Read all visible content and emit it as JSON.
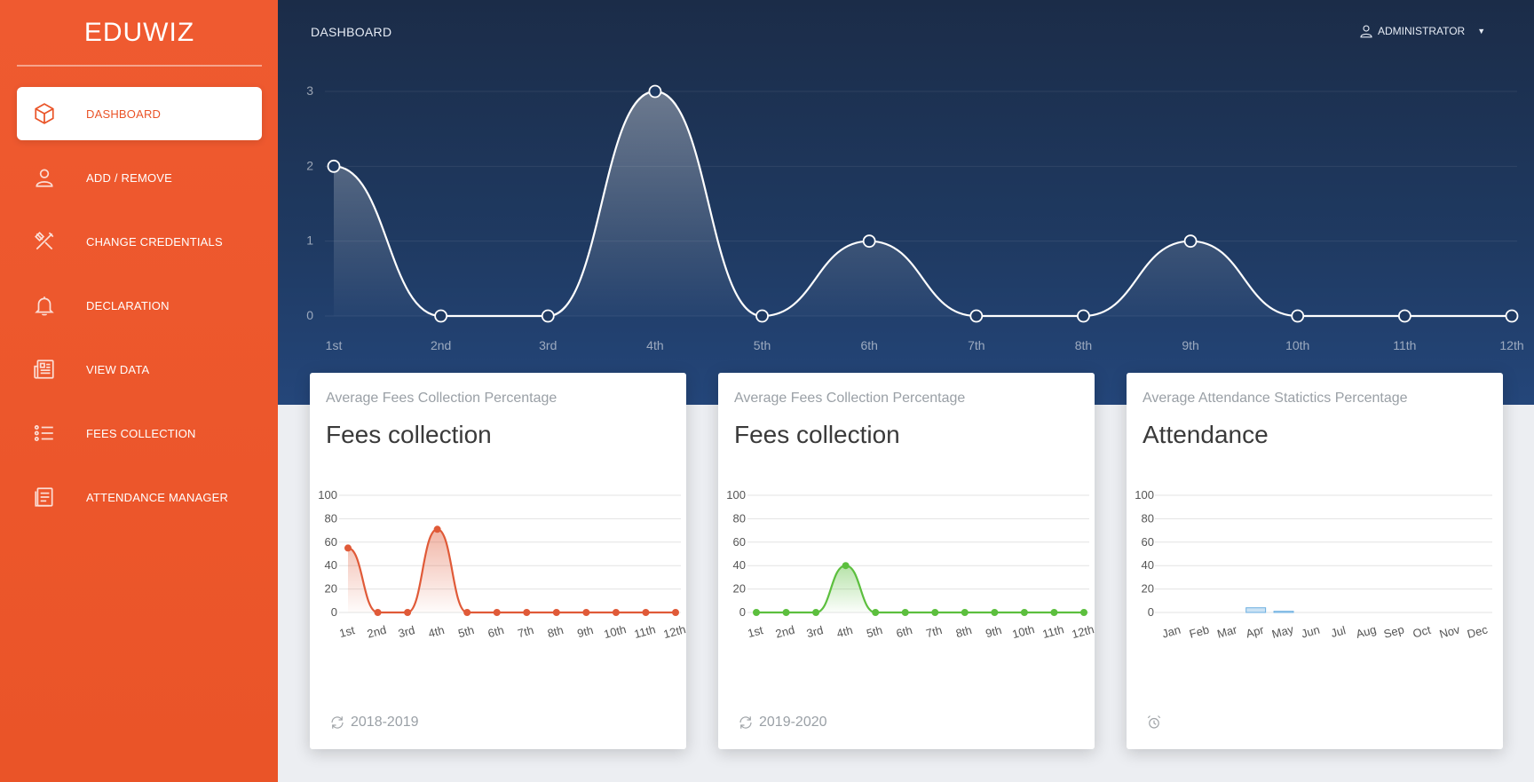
{
  "brand": "EDUWIZ",
  "sidebar": {
    "items": [
      {
        "label": "DASHBOARD",
        "icon": "cube-icon",
        "active": true
      },
      {
        "label": "ADD / REMOVE",
        "icon": "user-icon",
        "active": false
      },
      {
        "label": "CHANGE CREDENTIALS",
        "icon": "tools-icon",
        "active": false
      },
      {
        "label": "DECLARATION",
        "icon": "bell-icon",
        "active": false
      },
      {
        "label": "VIEW DATA",
        "icon": "newspaper-icon",
        "active": false
      },
      {
        "label": "FEES COLLECTION",
        "icon": "list-icon",
        "active": false
      },
      {
        "label": "ATTENDANCE MANAGER",
        "icon": "document-icon",
        "active": false
      }
    ]
  },
  "header": {
    "title": "DASHBOARD",
    "user_label": "ADMINISTRATOR"
  },
  "cards": [
    {
      "subtitle": "Average Fees Collection Percentage",
      "title": "Fees collection",
      "footer": "2018-2019",
      "footer_icon": "refresh-icon"
    },
    {
      "subtitle": "Average Fees Collection Percentage",
      "title": "Fees collection",
      "footer": "2019-2020",
      "footer_icon": "refresh-icon"
    },
    {
      "subtitle": "Average Attendance Statictics Percentage",
      "title": "Attendance",
      "footer": "",
      "footer_icon": "alarm-clock-icon"
    }
  ],
  "chart_data": [
    {
      "type": "line",
      "x": [
        "1st",
        "2nd",
        "3rd",
        "4th",
        "5th",
        "6th",
        "7th",
        "8th",
        "9th",
        "10th",
        "11th",
        "12th"
      ],
      "series": [
        {
          "values": [
            2,
            0,
            0,
            3,
            0,
            1,
            0,
            0,
            1,
            0,
            0,
            0
          ]
        }
      ],
      "ylim": [
        0,
        3
      ],
      "yticks": [
        0,
        1,
        2,
        3
      ],
      "color": "#ffffff",
      "grid": true
    },
    {
      "type": "line",
      "x": [
        "1st",
        "2nd",
        "3rd",
        "4th",
        "5th",
        "6th",
        "7th",
        "8th",
        "9th",
        "10th",
        "11th",
        "12th"
      ],
      "series": [
        {
          "values": [
            55,
            0,
            0,
            71,
            0,
            0,
            0,
            0,
            0,
            0,
            0,
            0
          ]
        }
      ],
      "ylim": [
        0,
        100
      ],
      "yticks": [
        0,
        20,
        40,
        60,
        80,
        100
      ],
      "color": "#e05a38",
      "grid": true
    },
    {
      "type": "line",
      "x": [
        "1st",
        "2nd",
        "3rd",
        "4th",
        "5th",
        "6th",
        "7th",
        "8th",
        "9th",
        "10th",
        "11th",
        "12th"
      ],
      "series": [
        {
          "values": [
            0,
            0,
            0,
            40,
            0,
            0,
            0,
            0,
            0,
            0,
            0,
            0
          ]
        }
      ],
      "ylim": [
        0,
        100
      ],
      "yticks": [
        0,
        20,
        40,
        60,
        80,
        100
      ],
      "color": "#5cbf3e",
      "grid": true
    },
    {
      "type": "bar",
      "categories": [
        "Jan",
        "Feb",
        "Mar",
        "Apr",
        "May",
        "Jun",
        "Jul",
        "Aug",
        "Sep",
        "Oct",
        "Nov",
        "Dec"
      ],
      "values": [
        0,
        0,
        0,
        4,
        1,
        0,
        0,
        0,
        0,
        0,
        0,
        0
      ],
      "ylim": [
        0,
        100
      ],
      "yticks": [
        0,
        20,
        40,
        60,
        80,
        100
      ],
      "color": "#6aaee0",
      "grid": true
    }
  ]
}
